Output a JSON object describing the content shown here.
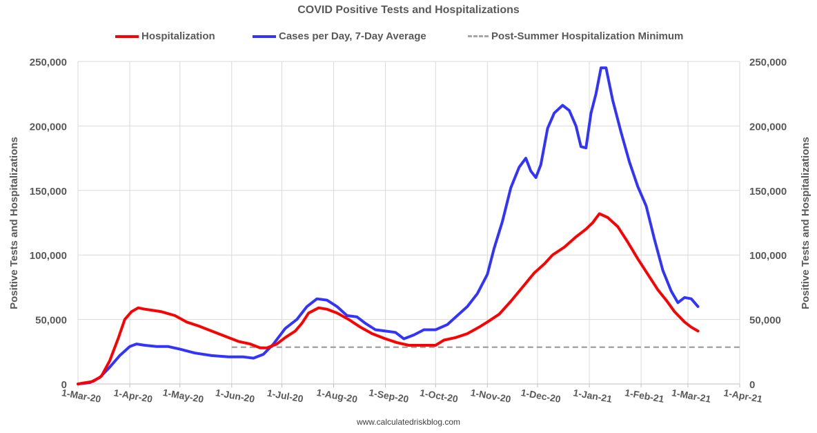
{
  "chart_data": {
    "type": "line",
    "title": "COVID Positive Tests and Hospitalizations",
    "ylabel": "Positive Tests and Hospitalizations",
    "ylabel_right": "Positive Tests and Hospitalizations",
    "ylim": [
      0,
      250000
    ],
    "y_ticks": [
      0,
      50000,
      100000,
      150000,
      200000,
      250000
    ],
    "y_tick_labels": [
      "0",
      "50,000",
      "100,000",
      "150,000",
      "200,000",
      "250,000"
    ],
    "x_range": [
      "2020-03-01",
      "2021-04-01"
    ],
    "x_ticks": [
      "2020-03-01",
      "2020-04-01",
      "2020-05-01",
      "2020-06-01",
      "2020-07-01",
      "2020-08-01",
      "2020-09-01",
      "2020-10-01",
      "2020-11-01",
      "2020-12-01",
      "2021-01-01",
      "2021-02-01",
      "2021-03-01",
      "2021-04-01"
    ],
    "x_tick_labels": [
      "1-Mar-20",
      "1-Apr-20",
      "1-May-20",
      "1-Jun-20",
      "1-Jul-20",
      "1-Aug-20",
      "1-Sep-20",
      "1-Oct-20",
      "1-Nov-20",
      "1-Dec-20",
      "1-Jan-21",
      "1-Feb-21",
      "1-Mar-21",
      "1-Apr-21"
    ],
    "grid": true,
    "legend_position": "top",
    "series": [
      {
        "name": "Hospitalization",
        "color": "#ff0000",
        "style": "solid",
        "points": [
          [
            "2020-03-01",
            0
          ],
          [
            "2020-03-10",
            2000
          ],
          [
            "2020-03-15",
            6000
          ],
          [
            "2020-03-20",
            18000
          ],
          [
            "2020-03-25",
            35000
          ],
          [
            "2020-03-29",
            50000
          ],
          [
            "2020-04-02",
            56000
          ],
          [
            "2020-04-06",
            59000
          ],
          [
            "2020-04-10",
            58000
          ],
          [
            "2020-04-15",
            57000
          ],
          [
            "2020-04-20",
            56000
          ],
          [
            "2020-04-28",
            53000
          ],
          [
            "2020-05-05",
            48000
          ],
          [
            "2020-05-12",
            45000
          ],
          [
            "2020-05-20",
            41000
          ],
          [
            "2020-05-28",
            37000
          ],
          [
            "2020-06-05",
            33000
          ],
          [
            "2020-06-12",
            31000
          ],
          [
            "2020-06-18",
            28000
          ],
          [
            "2020-06-22",
            28000
          ],
          [
            "2020-06-28",
            31000
          ],
          [
            "2020-07-03",
            36000
          ],
          [
            "2020-07-09",
            41000
          ],
          [
            "2020-07-13",
            47000
          ],
          [
            "2020-07-17",
            55000
          ],
          [
            "2020-07-23",
            59000
          ],
          [
            "2020-07-28",
            58000
          ],
          [
            "2020-08-03",
            55000
          ],
          [
            "2020-08-10",
            50000
          ],
          [
            "2020-08-17",
            44000
          ],
          [
            "2020-08-24",
            39000
          ],
          [
            "2020-09-01",
            35000
          ],
          [
            "2020-09-08",
            32000
          ],
          [
            "2020-09-15",
            30000
          ],
          [
            "2020-09-22",
            30000
          ],
          [
            "2020-10-01",
            30000
          ],
          [
            "2020-10-06",
            34000
          ],
          [
            "2020-10-13",
            36000
          ],
          [
            "2020-10-20",
            39000
          ],
          [
            "2020-10-27",
            44000
          ],
          [
            "2020-11-01",
            48000
          ],
          [
            "2020-11-08",
            54000
          ],
          [
            "2020-11-15",
            64000
          ],
          [
            "2020-11-22",
            75000
          ],
          [
            "2020-11-29",
            86000
          ],
          [
            "2020-12-05",
            93000
          ],
          [
            "2020-12-10",
            100000
          ],
          [
            "2020-12-17",
            106000
          ],
          [
            "2020-12-24",
            114000
          ],
          [
            "2020-12-30",
            120000
          ],
          [
            "2021-01-03",
            125000
          ],
          [
            "2021-01-07",
            132000
          ],
          [
            "2021-01-12",
            129000
          ],
          [
            "2021-01-18",
            122000
          ],
          [
            "2021-01-24",
            110000
          ],
          [
            "2021-01-30",
            97000
          ],
          [
            "2021-02-05",
            85000
          ],
          [
            "2021-02-11",
            73000
          ],
          [
            "2021-02-16",
            65000
          ],
          [
            "2021-02-21",
            56000
          ],
          [
            "2021-02-27",
            48000
          ],
          [
            "2021-03-03",
            44000
          ],
          [
            "2021-03-07",
            41000
          ]
        ]
      },
      {
        "name": "Cases per Day, 7-Day Average",
        "color": "#3333ff",
        "style": "solid",
        "points": [
          [
            "2020-03-01",
            0
          ],
          [
            "2020-03-08",
            1000
          ],
          [
            "2020-03-14",
            5000
          ],
          [
            "2020-03-20",
            13000
          ],
          [
            "2020-03-26",
            22000
          ],
          [
            "2020-04-01",
            29000
          ],
          [
            "2020-04-05",
            31000
          ],
          [
            "2020-04-10",
            30000
          ],
          [
            "2020-04-17",
            29000
          ],
          [
            "2020-04-24",
            29000
          ],
          [
            "2020-05-01",
            27000
          ],
          [
            "2020-05-10",
            24000
          ],
          [
            "2020-05-20",
            22000
          ],
          [
            "2020-05-30",
            21000
          ],
          [
            "2020-06-08",
            21000
          ],
          [
            "2020-06-14",
            20000
          ],
          [
            "2020-06-20",
            23000
          ],
          [
            "2020-06-26",
            31000
          ],
          [
            "2020-07-03",
            43000
          ],
          [
            "2020-07-10",
            50000
          ],
          [
            "2020-07-16",
            60000
          ],
          [
            "2020-07-22",
            66000
          ],
          [
            "2020-07-28",
            65000
          ],
          [
            "2020-08-03",
            60000
          ],
          [
            "2020-08-09",
            53000
          ],
          [
            "2020-08-15",
            52000
          ],
          [
            "2020-08-20",
            47000
          ],
          [
            "2020-08-26",
            42000
          ],
          [
            "2020-09-01",
            41000
          ],
          [
            "2020-09-07",
            40000
          ],
          [
            "2020-09-12",
            35000
          ],
          [
            "2020-09-18",
            38000
          ],
          [
            "2020-09-24",
            42000
          ],
          [
            "2020-10-01",
            42000
          ],
          [
            "2020-10-08",
            46000
          ],
          [
            "2020-10-14",
            53000
          ],
          [
            "2020-10-20",
            60000
          ],
          [
            "2020-10-26",
            70000
          ],
          [
            "2020-11-01",
            85000
          ],
          [
            "2020-11-05",
            105000
          ],
          [
            "2020-11-10",
            126000
          ],
          [
            "2020-11-15",
            152000
          ],
          [
            "2020-11-20",
            168000
          ],
          [
            "2020-11-24",
            175000
          ],
          [
            "2020-11-27",
            165000
          ],
          [
            "2020-11-30",
            160000
          ],
          [
            "2020-12-03",
            170000
          ],
          [
            "2020-12-07",
            198000
          ],
          [
            "2020-12-11",
            210000
          ],
          [
            "2020-12-16",
            216000
          ],
          [
            "2020-12-20",
            212000
          ],
          [
            "2020-12-24",
            200000
          ],
          [
            "2020-12-27",
            184000
          ],
          [
            "2020-12-30",
            183000
          ],
          [
            "2021-01-02",
            210000
          ],
          [
            "2021-01-05",
            225000
          ],
          [
            "2021-01-08",
            245000
          ],
          [
            "2021-01-11",
            245000
          ],
          [
            "2021-01-15",
            220000
          ],
          [
            "2021-01-20",
            195000
          ],
          [
            "2021-01-25",
            172000
          ],
          [
            "2021-01-30",
            153000
          ],
          [
            "2021-02-04",
            138000
          ],
          [
            "2021-02-09",
            112000
          ],
          [
            "2021-02-14",
            88000
          ],
          [
            "2021-02-19",
            72000
          ],
          [
            "2021-02-23",
            63000
          ],
          [
            "2021-02-27",
            67000
          ],
          [
            "2021-03-03",
            66000
          ],
          [
            "2021-03-07",
            60000
          ]
        ]
      },
      {
        "name": "Post-Summer Hospitalization Minimum",
        "color": "#a6a6a6",
        "style": "dashed",
        "points": [
          [
            "2020-06-01",
            28500
          ],
          [
            "2021-04-01",
            28500
          ]
        ]
      }
    ]
  },
  "footer": {
    "source": "www.calculatedriskblog.com"
  }
}
